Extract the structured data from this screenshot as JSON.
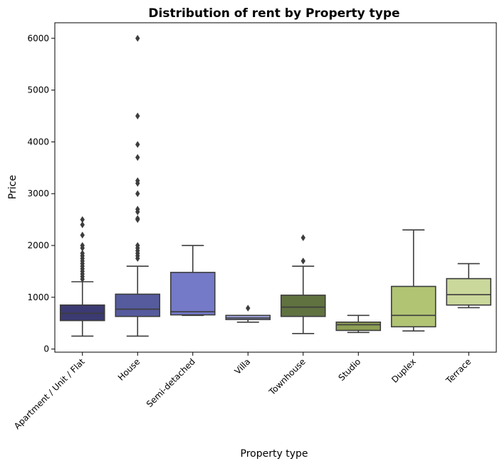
{
  "chart_data": {
    "type": "box",
    "title": "Distribution of rent by Property type",
    "xlabel": "Property type",
    "ylabel": "Price",
    "ylim": [
      -60,
      6300
    ],
    "yticks": [
      0,
      1000,
      2000,
      3000,
      4000,
      5000,
      6000
    ],
    "grid": false,
    "categories": [
      "Apartment / Unit / Flat",
      "House",
      "Semi-detached",
      "Villa",
      "Townhouse",
      "Studio",
      "Duplex",
      "Terrace"
    ],
    "boxes": [
      {
        "whisker_low": 250,
        "q1": 550,
        "median": 690,
        "q3": 850,
        "whisker_high": 1300,
        "outliers": [
          1350,
          1400,
          1450,
          1500,
          1550,
          1600,
          1650,
          1700,
          1750,
          1800,
          1850,
          1950,
          2000,
          2200,
          2400,
          2500
        ],
        "color": "#3b3a72"
      },
      {
        "whisker_low": 250,
        "q1": 630,
        "median": 770,
        "q3": 1060,
        "whisker_high": 1600,
        "outliers": [
          1750,
          1800,
          1850,
          1900,
          1950,
          2000,
          2500,
          2520,
          2650,
          2700,
          3000,
          3200,
          3250,
          3700,
          3950,
          4500,
          6000
        ],
        "color": "#555b9d"
      },
      {
        "whisker_low": 650,
        "q1": 660,
        "median": 720,
        "q3": 1480,
        "whisker_high": 2000,
        "outliers": [],
        "color": "#7479c8"
      },
      {
        "whisker_low": 520,
        "q1": 570,
        "median": 600,
        "q3": 650,
        "whisker_high": 650,
        "outliers": [
          790
        ],
        "color": "#9fa3dc"
      },
      {
        "whisker_low": 300,
        "q1": 630,
        "median": 810,
        "q3": 1040,
        "whisker_high": 1600,
        "outliers": [
          1700,
          2150
        ],
        "color": "#607240"
      },
      {
        "whisker_low": 320,
        "q1": 360,
        "median": 470,
        "q3": 520,
        "whisker_high": 650,
        "outliers": [],
        "color": "#8ea055"
      },
      {
        "whisker_low": 350,
        "q1": 430,
        "median": 650,
        "q3": 1210,
        "whisker_high": 2300,
        "outliers": [],
        "color": "#b1c474"
      },
      {
        "whisker_low": 800,
        "q1": 850,
        "median": 1050,
        "q3": 1360,
        "whisker_high": 1650,
        "outliers": [],
        "color": "#cad89b"
      }
    ]
  }
}
